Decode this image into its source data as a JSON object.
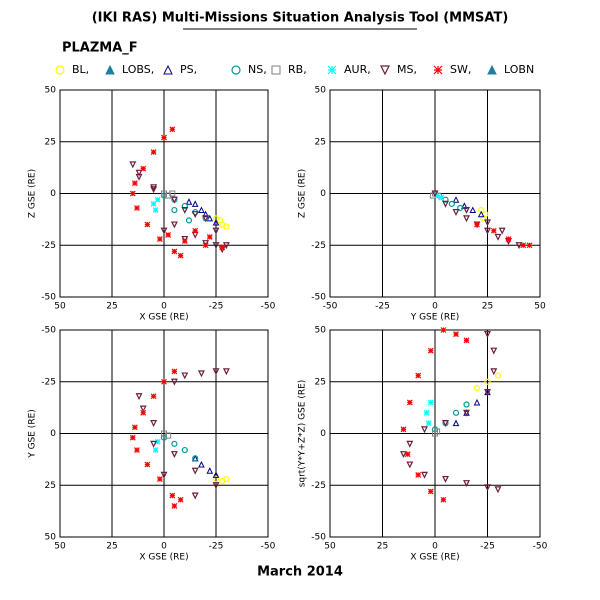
{
  "title": "(IKI RAS) Multi-Missions Situation Analysis Tool (MMSAT)",
  "subtitle": "PLAZMA_F",
  "footer": "March 2014",
  "chart_data": [
    {
      "type": "scatter",
      "xlabel": "X GSE (RE)",
      "ylabel": "Z GSE (RE)",
      "xlim": [
        50,
        -50
      ],
      "ylim": [
        -50,
        50
      ],
      "xticks": [
        50,
        25,
        0,
        -25,
        -50
      ],
      "yticks": [
        -50,
        -25,
        0,
        25,
        50
      ],
      "grid": true,
      "series": [
        {
          "name": "BL,",
          "color": "#ffff00",
          "symbol": "circle",
          "x": [
            -25,
            -27,
            -30,
            -28
          ],
          "y": [
            -12,
            -13,
            -16,
            -15
          ]
        },
        {
          "name": "LOBS,",
          "color": "#1f7f9f",
          "symbol": "filled-triangle",
          "x": [],
          "y": []
        },
        {
          "name": "PS,",
          "color": "#00008b",
          "symbol": "triangle",
          "x": [
            -15,
            -18,
            -20,
            -22,
            -25,
            -12
          ],
          "y": [
            -5,
            -8,
            -10,
            -12,
            -14,
            -4
          ]
        },
        {
          "name": "NS,",
          "color": "#009999",
          "symbol": "circle",
          "x": [
            0,
            -5,
            -10,
            -15,
            -20,
            -5,
            -12
          ],
          "y": [
            -1,
            -3,
            -6,
            -9,
            -12,
            -8,
            -13
          ]
        },
        {
          "name": "RB,",
          "color": "#808080",
          "symbol": "square",
          "x": [
            0,
            -2,
            -4
          ],
          "y": [
            0,
            -1,
            0
          ]
        },
        {
          "name": "AUR,",
          "color": "#00ffff",
          "symbol": "asterisk",
          "x": [
            3,
            5,
            4
          ],
          "y": [
            -3,
            -5,
            -8
          ]
        },
        {
          "name": "MS,",
          "color": "#6b1f3f",
          "symbol": "triangle-down",
          "x": [
            5,
            12,
            15,
            12,
            5,
            -5,
            -15,
            -25,
            -30,
            -25,
            -15,
            -5,
            0,
            -10,
            -20,
            -28,
            -20,
            -10
          ],
          "y": [
            2,
            8,
            14,
            10,
            3,
            -3,
            -10,
            -18,
            -25,
            -25,
            -20,
            -15,
            -18,
            -22,
            -24,
            -27,
            -12,
            -8
          ]
        },
        {
          "name": "SW,",
          "color": "#ff0000",
          "symbol": "asterisk",
          "x": [
            -4,
            0,
            5,
            10,
            14,
            15,
            13,
            8,
            2,
            -5,
            -8,
            -2,
            -10,
            -20,
            -28,
            -15,
            -22
          ],
          "y": [
            31,
            27,
            20,
            12,
            5,
            0,
            -7,
            -15,
            -22,
            -28,
            -30,
            -20,
            -23,
            -25,
            -26,
            -18,
            -21
          ]
        },
        {
          "name": "LOBN",
          "color": "#1f7f9f",
          "symbol": "filled-triangle",
          "x": [],
          "y": []
        }
      ]
    },
    {
      "type": "scatter",
      "xlabel": "Y GSE (RE)",
      "ylabel": "Z GSE (RE)",
      "xlim": [
        -50,
        50
      ],
      "ylim": [
        -50,
        50
      ],
      "xticks": [
        -50,
        -25,
        0,
        25,
        50
      ],
      "yticks": [
        -50,
        -25,
        0,
        25,
        50
      ],
      "grid": true,
      "series": [
        {
          "name": "BL,",
          "color": "#ffff00",
          "symbol": "circle",
          "x": [
            22,
            24,
            23
          ],
          "y": [
            -8,
            -10,
            -12
          ]
        },
        {
          "name": "LOBS,",
          "color": "#1f7f9f",
          "symbol": "filled-triangle",
          "x": [],
          "y": []
        },
        {
          "name": "PS,",
          "color": "#00008b",
          "symbol": "triangle",
          "x": [
            10,
            14,
            18,
            22
          ],
          "y": [
            -3,
            -6,
            -8,
            -10
          ]
        },
        {
          "name": "NS,",
          "color": "#009999",
          "symbol": "circle",
          "x": [
            2,
            5,
            8,
            12
          ],
          "y": [
            -1,
            -3,
            -5,
            -7
          ]
        },
        {
          "name": "RB,",
          "color": "#808080",
          "symbol": "square",
          "x": [
            0,
            -1
          ],
          "y": [
            0,
            -1
          ]
        },
        {
          "name": "AUR,",
          "color": "#00ffff",
          "symbol": "asterisk",
          "x": [
            1,
            3
          ],
          "y": [
            -1,
            -2
          ]
        },
        {
          "name": "MS,",
          "color": "#6b1f3f",
          "symbol": "triangle-down",
          "x": [
            0,
            5,
            10,
            15,
            20,
            25,
            30,
            35,
            40,
            15,
            25,
            32
          ],
          "y": [
            0,
            -5,
            -9,
            -12,
            -15,
            -18,
            -21,
            -23,
            -25,
            -8,
            -14,
            -18
          ]
        },
        {
          "name": "SW,",
          "color": "#ff0000",
          "symbol": "asterisk",
          "x": [
            20,
            28,
            35,
            42,
            45
          ],
          "y": [
            -15,
            -18,
            -22,
            -25,
            -25
          ]
        },
        {
          "name": "LOBN",
          "color": "#1f7f9f",
          "symbol": "filled-triangle",
          "x": [],
          "y": []
        }
      ]
    },
    {
      "type": "scatter",
      "xlabel": "X GSE (RE)",
      "ylabel": "Y GSE (RE)",
      "xlim": [
        50,
        -50
      ],
      "ylim": [
        50,
        -50
      ],
      "xticks": [
        50,
        25,
        0,
        -25,
        -50
      ],
      "yticks": [
        50,
        25,
        0,
        -25,
        -50
      ],
      "grid": true,
      "series": [
        {
          "name": "BL,",
          "color": "#ffff00",
          "symbol": "circle",
          "x": [
            -25,
            -28,
            -30
          ],
          "y": [
            22,
            23,
            22
          ]
        },
        {
          "name": "LOBS,",
          "color": "#1f7f9f",
          "symbol": "filled-triangle",
          "x": [],
          "y": []
        },
        {
          "name": "PS,",
          "color": "#00008b",
          "symbol": "triangle",
          "x": [
            -15,
            -18,
            -22,
            -25
          ],
          "y": [
            12,
            15,
            18,
            20
          ]
        },
        {
          "name": "NS,",
          "color": "#009999",
          "symbol": "circle",
          "x": [
            0,
            -5,
            -10,
            -15
          ],
          "y": [
            2,
            5,
            8,
            12
          ]
        },
        {
          "name": "RB,",
          "color": "#808080",
          "symbol": "square",
          "x": [
            0,
            -2
          ],
          "y": [
            0,
            1
          ]
        },
        {
          "name": "AUR,",
          "color": "#00ffff",
          "symbol": "asterisk",
          "x": [
            3,
            4
          ],
          "y": [
            4,
            8
          ]
        },
        {
          "name": "MS,",
          "color": "#6b1f3f",
          "symbol": "triangle-down",
          "x": [
            -5,
            -10,
            -18,
            -25,
            -30,
            5,
            10,
            12,
            5,
            -5,
            -15,
            -25,
            0,
            -15
          ],
          "y": [
            -25,
            -28,
            -29,
            -30,
            -30,
            -5,
            -12,
            -18,
            5,
            10,
            18,
            25,
            20,
            30
          ]
        },
        {
          "name": "SW,",
          "color": "#ff0000",
          "symbol": "asterisk",
          "x": [
            -5,
            0,
            5,
            10,
            14,
            15,
            13,
            8,
            2,
            -4,
            -8,
            -5
          ],
          "y": [
            -30,
            -25,
            -18,
            -10,
            -3,
            2,
            8,
            15,
            22,
            30,
            32,
            35
          ]
        },
        {
          "name": "LOBN",
          "color": "#1f7f9f",
          "symbol": "filled-triangle",
          "x": [],
          "y": []
        }
      ]
    },
    {
      "type": "scatter",
      "xlabel": "X GSE (RE)",
      "ylabel": "sqrt(Y*Y+Z*Z) GSE (RE)",
      "xlim": [
        50,
        -50
      ],
      "ylim": [
        -50,
        50
      ],
      "xticks": [
        50,
        25,
        0,
        -25,
        -50
      ],
      "yticks": [
        -50,
        -25,
        0,
        25,
        50
      ],
      "grid": true,
      "series": [
        {
          "name": "BL,",
          "color": "#ffff00",
          "symbol": "circle",
          "x": [
            -20,
            -25,
            -30
          ],
          "y": [
            22,
            25,
            28
          ]
        },
        {
          "name": "LOBS,",
          "color": "#1f7f9f",
          "symbol": "filled-triangle",
          "x": [],
          "y": []
        },
        {
          "name": "PS,",
          "color": "#00008b",
          "symbol": "triangle",
          "x": [
            -10,
            -15,
            -20,
            -25
          ],
          "y": [
            5,
            10,
            15,
            20
          ]
        },
        {
          "name": "NS,",
          "color": "#009999",
          "symbol": "circle",
          "x": [
            0,
            -5,
            -10,
            -15
          ],
          "y": [
            2,
            5,
            10,
            14
          ]
        },
        {
          "name": "RB,",
          "color": "#808080",
          "symbol": "square",
          "x": [
            0,
            -1
          ],
          "y": [
            0,
            1
          ]
        },
        {
          "name": "AUR,",
          "color": "#00ffff",
          "symbol": "asterisk",
          "x": [
            3,
            4,
            2
          ],
          "y": [
            5,
            10,
            15
          ]
        },
        {
          "name": "MS,",
          "color": "#6b1f3f",
          "symbol": "triangle-down",
          "x": [
            -25,
            -28,
            -28,
            -25,
            -15,
            -5,
            5,
            12,
            15,
            12,
            5,
            -5,
            -15,
            -25,
            -30
          ],
          "y": [
            48,
            40,
            30,
            20,
            10,
            5,
            2,
            -5,
            -10,
            -15,
            -20,
            -22,
            -24,
            -26,
            -27
          ]
        },
        {
          "name": "SW,",
          "color": "#ff0000",
          "symbol": "asterisk",
          "x": [
            -4,
            2,
            8,
            12,
            15,
            13,
            8,
            2,
            -4,
            -10,
            -15
          ],
          "y": [
            50,
            40,
            28,
            15,
            2,
            -10,
            -20,
            -28,
            -32,
            48,
            45
          ]
        },
        {
          "name": "LOBN",
          "color": "#1f7f9f",
          "symbol": "filled-triangle",
          "x": [],
          "y": []
        }
      ]
    }
  ]
}
